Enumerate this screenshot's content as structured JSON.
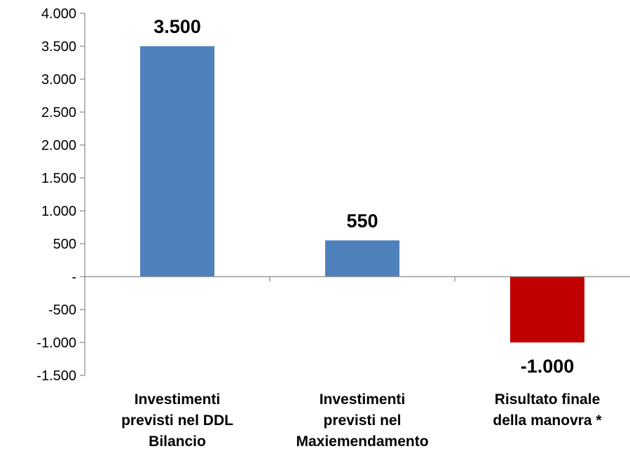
{
  "chart_data": {
    "type": "bar",
    "categories": [
      [
        "Investimenti",
        "previsti nel DDL",
        "Bilancio"
      ],
      [
        "Investimenti",
        "previsti nel",
        "Maxiemendamento"
      ],
      [
        "Risultato finale",
        "della manovra *"
      ]
    ],
    "values": [
      3500,
      550,
      -1000
    ],
    "data_labels": [
      "3.500",
      "550",
      "-1.000"
    ],
    "bar_colors": [
      "#4F81BD",
      "#4F81BD",
      "#C00000"
    ],
    "ylim": [
      -1500,
      4000
    ],
    "y_ticks": [
      4000,
      3500,
      3000,
      2500,
      2000,
      1500,
      1000,
      500,
      0,
      -500,
      -1000,
      -1500
    ],
    "y_tick_labels": [
      "4.000",
      "3.500",
      "3.000",
      "2.500",
      "2.000",
      "1.500",
      "1.000",
      "500",
      "-",
      "-500",
      "-1.000",
      "-1.500"
    ],
    "grid": false,
    "legend": "none"
  }
}
